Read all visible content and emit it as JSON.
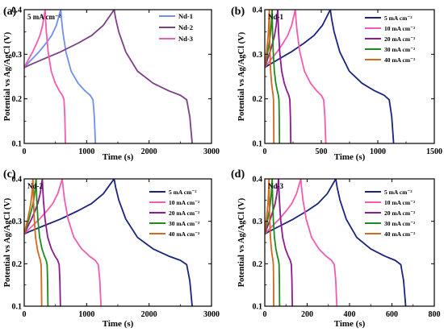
{
  "chart_data": [
    {
      "type": "line",
      "panel_label": "(a)",
      "annotation": "5 mA cm⁻²",
      "xlabel": "Time (s)",
      "ylabel": "Potential vs Ag/AgCl (V)",
      "xlim": [
        0,
        3000
      ],
      "ylim": [
        0.1,
        0.4
      ],
      "xticks": [
        0,
        1000,
        2000,
        3000
      ],
      "yticks": [
        0.1,
        0.2,
        0.3,
        0.4
      ],
      "legend_position": "top-right",
      "series": [
        {
          "name": "Nd-1",
          "color": "#6f8ef2",
          "charge_time": 585,
          "discharge_end": 1140
        },
        {
          "name": "Nd-2",
          "color": "#7d3f86",
          "charge_time": 1440,
          "discharge_end": 2690
        },
        {
          "name": "Nd-3",
          "color": "#f25bb0",
          "charge_time": 335,
          "discharge_end": 660
        }
      ]
    },
    {
      "type": "line",
      "panel_label": "(b)",
      "annotation": "Nd-1",
      "xlabel": "Time (s)",
      "ylabel": "Potential vs Ag/AgCl (V)",
      "xlim": [
        0,
        1500
      ],
      "ylim": [
        0.1,
        0.4
      ],
      "xticks": [
        0,
        500,
        1000,
        1500
      ],
      "yticks": [
        0.1,
        0.2,
        0.3,
        0.4
      ],
      "legend_position": "top-right",
      "series": [
        {
          "name": "5 mA cm⁻²",
          "color": "#1a237e",
          "charge_time": 580,
          "discharge_end": 1140
        },
        {
          "name": "10 mA cm⁻²",
          "color": "#f25bb0",
          "charge_time": 270,
          "discharge_end": 540
        },
        {
          "name": "20 mA cm⁻²",
          "color": "#8e1b8e",
          "charge_time": 115,
          "discharge_end": 230
        },
        {
          "name": "30 mA cm⁻²",
          "color": "#1f8a1f",
          "charge_time": 65,
          "discharge_end": 130
        },
        {
          "name": "40 mA cm⁻²",
          "color": "#d2691e",
          "charge_time": 40,
          "discharge_end": 80
        }
      ]
    },
    {
      "type": "line",
      "panel_label": "(c)",
      "annotation": "Nd-2",
      "xlabel": "Time (s)",
      "ylabel": "Potential vs Ag/AgCl (V)",
      "xlim": [
        0,
        3000
      ],
      "ylim": [
        0.1,
        0.4
      ],
      "xticks": [
        0,
        1000,
        2000,
        3000
      ],
      "yticks": [
        0.1,
        0.2,
        0.3,
        0.4
      ],
      "legend_position": "top-right",
      "series": [
        {
          "name": "5 mA cm⁻²",
          "color": "#1a237e",
          "charge_time": 1440,
          "discharge_end": 2690
        },
        {
          "name": "10 mA cm⁻²",
          "color": "#f25bb0",
          "charge_time": 610,
          "discharge_end": 1230
        },
        {
          "name": "20 mA cm⁻²",
          "color": "#8e1b8e",
          "charge_time": 290,
          "discharge_end": 580
        },
        {
          "name": "30 mA cm⁻²",
          "color": "#1f8a1f",
          "charge_time": 190,
          "discharge_end": 380
        },
        {
          "name": "40 mA cm⁻²",
          "color": "#d2691e",
          "charge_time": 140,
          "discharge_end": 280
        }
      ]
    },
    {
      "type": "line",
      "panel_label": "(d)",
      "annotation": "Nd-3",
      "xlabel": "Time (s)",
      "ylabel": "Potential vs Ag/AgCl (V)",
      "xlim": [
        0,
        800
      ],
      "ylim": [
        0.1,
        0.4
      ],
      "xticks": [
        0,
        200,
        400,
        600,
        800
      ],
      "yticks": [
        0.1,
        0.2,
        0.3,
        0.4
      ],
      "legend_position": "top-right",
      "series": [
        {
          "name": "5 mA cm⁻²",
          "color": "#1a237e",
          "charge_time": 335,
          "discharge_end": 665
        },
        {
          "name": "10 mA cm⁻²",
          "color": "#f25bb0",
          "charge_time": 170,
          "discharge_end": 340
        },
        {
          "name": "20 mA cm⁻²",
          "color": "#8e1b8e",
          "charge_time": 65,
          "discharge_end": 130
        },
        {
          "name": "30 mA cm⁻²",
          "color": "#1f8a1f",
          "charge_time": 35,
          "discharge_end": 70
        },
        {
          "name": "40 mA cm⁻²",
          "color": "#d2691e",
          "charge_time": 20,
          "discharge_end": 42
        }
      ]
    }
  ]
}
